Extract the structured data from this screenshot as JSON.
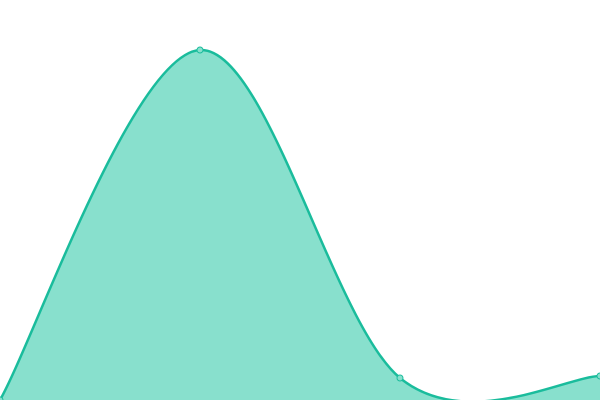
{
  "chart_data": {
    "type": "area",
    "categories": [
      null,
      null,
      null,
      null
    ],
    "values": [
      0,
      350,
      22,
      24
    ],
    "ylim": [
      0,
      400
    ],
    "color": "#1abc9c",
    "fill": "#88e0cd"
  }
}
